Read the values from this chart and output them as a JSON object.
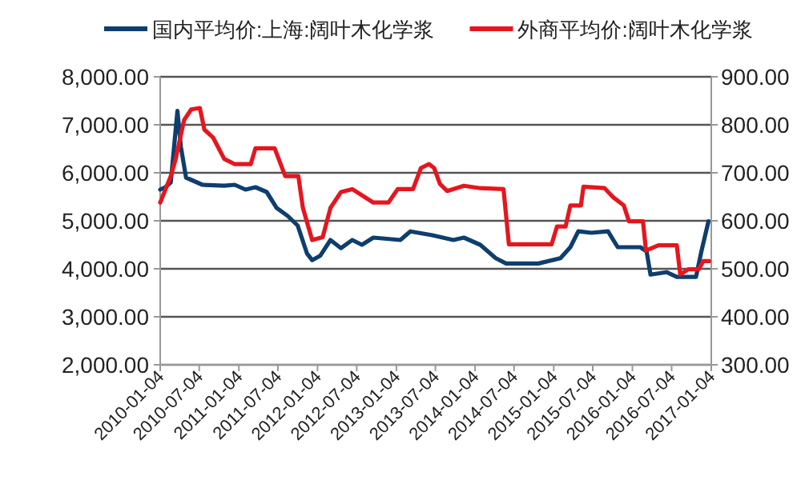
{
  "chart_data": {
    "type": "line",
    "legend": "top",
    "grid": "y",
    "xlim": [
      "2010-01-04",
      "2017-01-04"
    ],
    "xticks": [
      {
        "value": "2010-01-04",
        "label": "2010-01-04"
      },
      {
        "value": "2010-07-04",
        "label": "2010-07-04"
      },
      {
        "value": "2011-01-04",
        "label": "2011-01-04"
      },
      {
        "value": "2011-07-04",
        "label": "2011-07-04"
      },
      {
        "value": "2012-01-04",
        "label": "2012-01-04"
      },
      {
        "value": "2012-07-04",
        "label": "2012-07-04"
      },
      {
        "value": "2013-01-04",
        "label": "2013-01-04"
      },
      {
        "value": "2013-07-04",
        "label": "2013-07-04"
      },
      {
        "value": "2014-01-04",
        "label": "2014-01-04"
      },
      {
        "value": "2014-07-04",
        "label": "2014-07-04"
      },
      {
        "value": "2015-01-04",
        "label": "2015-01-04"
      },
      {
        "value": "2015-07-04",
        "label": "2015-07-04"
      },
      {
        "value": "2016-01-04",
        "label": "2016-01-04"
      },
      {
        "value": "2016-07-04",
        "label": "2016-07-04"
      },
      {
        "value": "2017-01-04",
        "label": "2017-01-04"
      }
    ],
    "ylim": [
      2000,
      8000
    ],
    "yticks": [
      {
        "value": 2000,
        "label": "2,000.00"
      },
      {
        "value": 3000,
        "label": "3,000.00"
      },
      {
        "value": 4000,
        "label": "4,000.00"
      },
      {
        "value": 5000,
        "label": "5,000.00"
      },
      {
        "value": 6000,
        "label": "6,000.00"
      },
      {
        "value": 7000,
        "label": "7,000.00"
      },
      {
        "value": 8000,
        "label": "8,000.00"
      }
    ],
    "y2lim": [
      300,
      900
    ],
    "y2ticks": [
      {
        "value": 300,
        "label": "300.00"
      },
      {
        "value": 400,
        "label": "400.00"
      },
      {
        "value": 500,
        "label": "500.00"
      },
      {
        "value": 600,
        "label": "600.00"
      },
      {
        "value": 700,
        "label": "700.00"
      },
      {
        "value": 800,
        "label": "800.00"
      },
      {
        "value": 900,
        "label": "900.00"
      }
    ],
    "series": [
      {
        "name": "国内平均价:上海:阔叶木化学浆",
        "color": "#0e3e6e",
        "axis": "y",
        "x": [
          "2010-01-04",
          "2010-01-28",
          "2010-02-22",
          "2010-03-25",
          "2010-04-10",
          "2010-05-04",
          "2010-07-19",
          "2010-10-28",
          "2010-12-16",
          "2011-02-04",
          "2011-03-22",
          "2011-05-13",
          "2011-06-28",
          "2011-08-19",
          "2011-10-04",
          "2011-11-16",
          "2011-12-10",
          "2012-01-16",
          "2012-03-04",
          "2012-04-22",
          "2012-06-13",
          "2012-07-28",
          "2012-09-19",
          "2013-01-22",
          "2013-03-10",
          "2013-06-19",
          "2013-09-25",
          "2013-11-13",
          "2014-01-28",
          "2014-04-10",
          "2014-05-28",
          "2014-10-25",
          "2015-02-04",
          "2015-03-22",
          "2015-04-28",
          "2015-06-28",
          "2015-09-13",
          "2015-10-28",
          "2016-02-10",
          "2016-03-10",
          "2016-03-28",
          "2016-06-10",
          "2016-07-28",
          "2016-10-25",
          "2016-11-19",
          "2016-12-22"
        ],
        "values": [
          5650,
          5700,
          5800,
          7290,
          6540,
          5900,
          5750,
          5730,
          5750,
          5650,
          5700,
          5600,
          5270,
          5100,
          4900,
          4320,
          4180,
          4270,
          4600,
          4430,
          4600,
          4500,
          4650,
          4600,
          4780,
          4700,
          4600,
          4650,
          4500,
          4220,
          4110,
          4110,
          4220,
          4450,
          4780,
          4750,
          4780,
          4450,
          4450,
          4360,
          3880,
          3930,
          3830,
          3830,
          4360,
          4990
        ]
      },
      {
        "name": "外商平均价:阔叶木化学浆",
        "color": "#e5161e",
        "axis": "y2",
        "x": [
          "2010-01-04",
          "2010-02-22",
          "2010-03-16",
          "2010-04-25",
          "2010-05-28",
          "2010-07-07",
          "2010-07-28",
          "2010-09-07",
          "2010-10-28",
          "2010-12-16",
          "2011-02-28",
          "2011-03-22",
          "2011-06-19",
          "2011-08-07",
          "2011-10-07",
          "2011-10-28",
          "2011-12-10",
          "2012-01-28",
          "2012-03-04",
          "2012-04-22",
          "2012-06-13",
          "2012-09-19",
          "2012-11-28",
          "2013-01-10",
          "2013-03-22",
          "2013-04-28",
          "2013-06-04",
          "2013-06-28",
          "2013-07-25",
          "2013-08-28",
          "2013-11-13",
          "2014-01-28",
          "2014-05-16",
          "2014-06-10",
          "2014-12-25",
          "2015-01-19",
          "2015-02-28",
          "2015-03-22",
          "2015-05-10",
          "2015-05-22",
          "2015-08-28",
          "2015-10-07",
          "2015-11-25",
          "2015-12-19",
          "2016-02-22",
          "2016-03-07",
          "2016-05-04",
          "2016-07-28",
          "2016-08-13",
          "2016-09-19",
          "2016-11-07",
          "2016-11-28",
          "2016-12-25"
        ],
        "values": [
          638,
          693,
          727,
          810,
          832,
          835,
          790,
          773,
          729,
          718,
          718,
          751,
          751,
          693,
          693,
          627,
          560,
          566,
          627,
          660,
          666,
          638,
          638,
          666,
          666,
          710,
          718,
          710,
          677,
          662,
          673,
          668,
          666,
          551,
          551,
          588,
          588,
          632,
          632,
          671,
          668,
          649,
          632,
          599,
          599,
          538,
          549,
          549,
          488,
          499,
          499,
          516,
          516
        ]
      }
    ]
  }
}
